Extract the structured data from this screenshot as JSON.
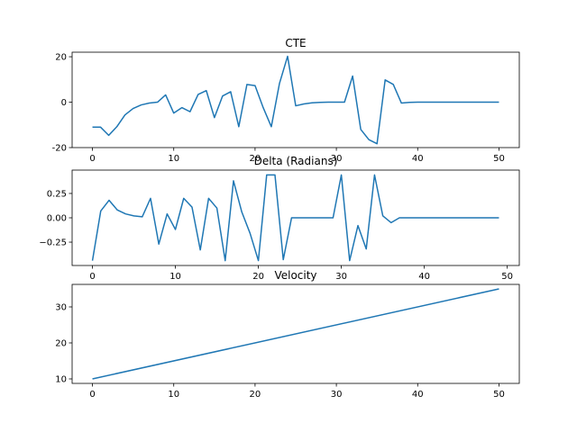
{
  "chart_data": [
    {
      "type": "line",
      "title": "CTE",
      "xlabel": "",
      "ylabel": "",
      "xlim": [
        -2.5,
        52.5
      ],
      "ylim": [
        -20,
        22
      ],
      "xticks": [
        0,
        10,
        20,
        30,
        40,
        50
      ],
      "yticks": [
        -20,
        0,
        20
      ],
      "color": "#1f77b4",
      "x": [
        0,
        1,
        2,
        3,
        4,
        5,
        6,
        7,
        8,
        9,
        10,
        11,
        12,
        13,
        14,
        15,
        16,
        17,
        18,
        19,
        20,
        21,
        22,
        23,
        24,
        25,
        26,
        27,
        28,
        29,
        30,
        31,
        32,
        33,
        34,
        35,
        36,
        37,
        38,
        39,
        40,
        41,
        42,
        43,
        44,
        45,
        46,
        47,
        48,
        49,
        50
      ],
      "y": [
        -11,
        -11,
        -14.6,
        -10.8,
        -5.6,
        -2.8,
        -1.2,
        -0.4,
        0,
        3.2,
        -4.8,
        -2.4,
        -4.2,
        3.4,
        5.1,
        -6.8,
        2.7,
        4.6,
        -10.8,
        7.8,
        7.3,
        -2.4,
        -10.8,
        8.2,
        20.2,
        -1.6,
        -0.8,
        -0.3,
        -0.1,
        0,
        0,
        0,
        11.5,
        -12,
        -16.5,
        -18.3,
        9.8,
        7.8,
        -0.4,
        -0.1,
        0,
        0,
        0,
        0,
        0,
        0,
        0,
        0,
        0,
        0,
        0
      ]
    },
    {
      "type": "line",
      "title": "Delta (Radians)",
      "xlabel": "",
      "ylabel": "",
      "xlim": [
        -2.45,
        51.45
      ],
      "ylim": [
        -0.49,
        0.49
      ],
      "xticks": [
        0,
        10,
        20,
        30,
        40,
        50
      ],
      "yticks": [
        -0.25,
        0.0,
        0.25
      ],
      "ytick_labels": [
        "−0.25",
        "0.00",
        "0.25"
      ],
      "color": "#1f77b4",
      "x": [
        0,
        1,
        2,
        3,
        4,
        5,
        6,
        7,
        8,
        9,
        10,
        11,
        12,
        13,
        14,
        15,
        16,
        17,
        18,
        19,
        20,
        21,
        22,
        23,
        24,
        25,
        26,
        27,
        28,
        29,
        30,
        31,
        32,
        33,
        34,
        35,
        36,
        37,
        38,
        39,
        40,
        41,
        42,
        43,
        44,
        45,
        46,
        47,
        48,
        49
      ],
      "y": [
        -0.44,
        0.07,
        0.18,
        0.08,
        0.04,
        0.02,
        0.01,
        0.2,
        -0.27,
        0.04,
        -0.12,
        0.2,
        0.11,
        -0.33,
        0.2,
        0.1,
        -0.44,
        0.38,
        0.06,
        -0.16,
        -0.44,
        0.44,
        0.44,
        -0.43,
        0.0,
        0.0,
        0.0,
        0.0,
        0.0,
        0.0,
        0.44,
        -0.44,
        -0.08,
        -0.32,
        0.44,
        0.02,
        -0.05,
        0.0,
        0.0,
        0.0,
        0.0,
        0.0,
        0.0,
        0.0,
        0.0,
        0.0,
        0.0,
        0.0,
        0.0,
        0.0
      ]
    },
    {
      "type": "line",
      "title": "Velocity",
      "xlabel": "",
      "ylabel": "",
      "xlim": [
        -2.5,
        52.5
      ],
      "ylim": [
        8.75,
        36.25
      ],
      "xticks": [
        0,
        10,
        20,
        30,
        40,
        50
      ],
      "yticks": [
        10,
        20,
        30
      ],
      "color": "#1f77b4",
      "x": [
        0,
        50
      ],
      "y": [
        10,
        35
      ]
    }
  ]
}
